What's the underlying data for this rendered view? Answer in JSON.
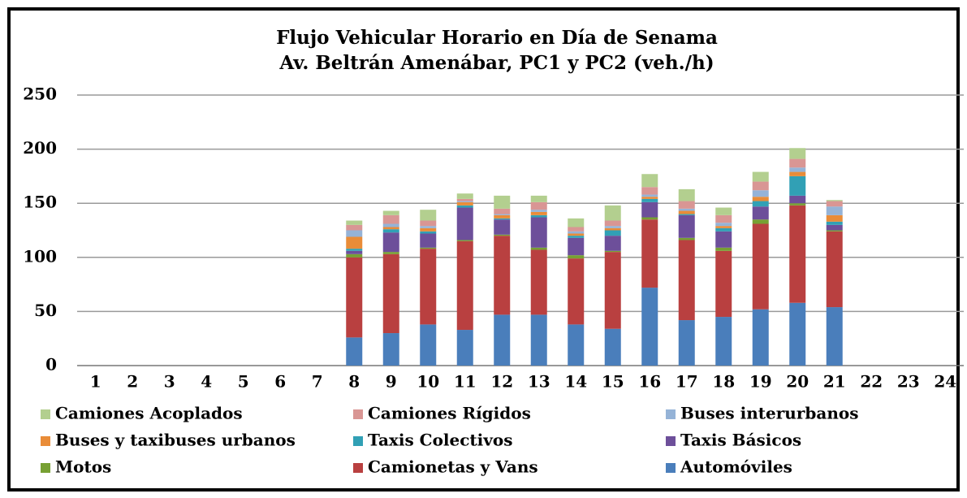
{
  "chart_data": {
    "type": "stacked_bar",
    "title": "Flujo Vehicular Horario en Día de Senama",
    "subtitle": "Av. Beltrán Amenábar, PC1 y PC2 (veh./h)",
    "categories": [
      "1",
      "2",
      "3",
      "4",
      "5",
      "6",
      "7",
      "8",
      "9",
      "10",
      "11",
      "12",
      "13",
      "14",
      "15",
      "16",
      "17",
      "18",
      "19",
      "20",
      "21",
      "22",
      "23",
      "24"
    ],
    "ylim": [
      0,
      250
    ],
    "yticks": [
      0,
      50,
      100,
      150,
      200,
      250
    ],
    "grid": true,
    "series": [
      {
        "name": "Automóviles",
        "color": "#4a7ebb",
        "values": [
          null,
          null,
          null,
          null,
          null,
          null,
          null,
          26,
          30,
          38,
          33,
          47,
          47,
          38,
          34,
          72,
          42,
          45,
          52,
          58,
          54,
          null,
          null,
          null
        ]
      },
      {
        "name": "Camionetas y Vans",
        "color": "#b94040",
        "values": [
          null,
          null,
          null,
          null,
          null,
          null,
          null,
          74,
          73,
          70,
          82,
          73,
          60,
          61,
          71,
          63,
          74,
          61,
          79,
          90,
          70,
          null,
          null,
          null
        ]
      },
      {
        "name": "Motos",
        "color": "#77a033",
        "values": [
          null,
          null,
          null,
          null,
          null,
          null,
          null,
          3,
          2,
          1,
          1,
          1,
          2,
          3,
          1,
          2,
          2,
          3,
          4,
          2,
          1,
          null,
          null,
          null
        ]
      },
      {
        "name": "Taxis Básicos",
        "color": "#6d4f9a",
        "values": [
          null,
          null,
          null,
          null,
          null,
          null,
          null,
          3,
          18,
          13,
          30,
          14,
          28,
          16,
          14,
          14,
          21,
          15,
          12,
          7,
          5,
          null,
          null,
          null
        ]
      },
      {
        "name": "Taxis Colectivos",
        "color": "#31a0b5",
        "values": [
          null,
          null,
          null,
          null,
          null,
          null,
          null,
          2,
          3,
          2,
          2,
          1,
          2,
          2,
          5,
          3,
          1,
          3,
          5,
          18,
          3,
          null,
          null,
          null
        ]
      },
      {
        "name": "Buses y taxibuses urbanos",
        "color": "#e98c38",
        "values": [
          null,
          null,
          null,
          null,
          null,
          null,
          null,
          11,
          2,
          3,
          3,
          3,
          3,
          2,
          2,
          2,
          3,
          2,
          4,
          4,
          6,
          null,
          null,
          null
        ]
      },
      {
        "name": "Buses interurbanos",
        "color": "#95b3d7",
        "values": [
          null,
          null,
          null,
          null,
          null,
          null,
          null,
          6,
          3,
          2,
          1,
          1,
          2,
          2,
          2,
          2,
          2,
          3,
          6,
          4,
          8,
          null,
          null,
          null
        ]
      },
      {
        "name": "Camiones Rígidos",
        "color": "#d99694",
        "values": [
          null,
          null,
          null,
          null,
          null,
          null,
          null,
          5,
          8,
          5,
          2,
          5,
          7,
          4,
          5,
          7,
          7,
          7,
          8,
          8,
          5,
          null,
          null,
          null
        ]
      },
      {
        "name": "Camiones Acoplados",
        "color": "#b3cf8f",
        "values": [
          null,
          null,
          null,
          null,
          null,
          null,
          null,
          4,
          4,
          10,
          5,
          12,
          6,
          8,
          14,
          12,
          11,
          7,
          9,
          10,
          1,
          null,
          null,
          null
        ]
      }
    ]
  }
}
